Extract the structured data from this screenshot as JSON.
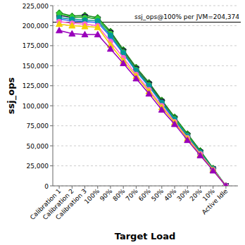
{
  "chart_data": {
    "type": "line",
    "x_label": "Target Load",
    "y_label": "ssj_ops",
    "categories": [
      "Calibration 1",
      "Calibration 2",
      "Calibration 3",
      "100%",
      "90%",
      "80%",
      "70%",
      "60%",
      "50%",
      "40%",
      "30%",
      "20%",
      "10%",
      "Active Idle"
    ],
    "series": [
      {
        "color": "#1a8a1a",
        "marker": "diamond",
        "values": [
          216000,
          212000,
          213000,
          210000,
          193000,
          170000,
          148000,
          129000,
          107000,
          86000,
          65000,
          44000,
          22000,
          0
        ]
      },
      {
        "color": "#1c1c4a",
        "marker": "square",
        "values": [
          213000,
          210000,
          211000,
          208000,
          191000,
          168000,
          146000,
          127000,
          105000,
          84000,
          63000,
          42000,
          21000,
          0
        ]
      },
      {
        "color": "#33cc33",
        "marker": "circle",
        "values": [
          215000,
          211000,
          210000,
          209000,
          190000,
          167000,
          145000,
          126000,
          104000,
          84000,
          63000,
          42000,
          21000,
          0
        ]
      },
      {
        "color": "#3366ff",
        "marker": "circle",
        "values": [
          208000,
          206000,
          205000,
          204000,
          186000,
          165000,
          143000,
          124000,
          103000,
          82000,
          62000,
          41000,
          21000,
          0
        ]
      },
      {
        "color": "#009999",
        "marker": "circle",
        "values": [
          210000,
          208000,
          207000,
          206000,
          188000,
          166000,
          144000,
          125000,
          104000,
          83000,
          62000,
          42000,
          21000,
          0
        ]
      },
      {
        "color": "#ff66cc",
        "marker": "circle",
        "values": [
          205000,
          203000,
          202000,
          200000,
          180000,
          160000,
          139000,
          120000,
          100000,
          80000,
          60000,
          40000,
          20000,
          0
        ]
      },
      {
        "color": "#f2d000",
        "marker": "triangle",
        "values": [
          202000,
          200000,
          199000,
          198000,
          176000,
          156000,
          137000,
          118000,
          98000,
          79000,
          59000,
          39000,
          20000,
          0
        ]
      },
      {
        "color": "#9900bb",
        "marker": "triangle",
        "values": [
          194000,
          190000,
          189000,
          189000,
          171000,
          153000,
          134000,
          115000,
          95000,
          77000,
          57000,
          38000,
          19000,
          0
        ]
      }
    ],
    "ylim": [
      0,
      225000
    ],
    "yticks": [
      0,
      {
        "value": 25000,
        "label": "25,000"
      },
      {
        "value": 50000,
        "label": "50,000"
      },
      {
        "value": 75000,
        "label": "75,000"
      },
      {
        "value": 100000,
        "label": "100,000"
      },
      {
        "value": 125000,
        "label": "125,000"
      },
      {
        "value": 150000,
        "label": "150,000"
      },
      {
        "value": 175000,
        "label": "175,000"
      },
      {
        "value": 200000,
        "label": "200,000"
      },
      {
        "value": 225000,
        "label": "225,000"
      }
    ],
    "grid": true,
    "annotations": [
      {
        "text": "ssj_ops@100% per JVM=204,374",
        "y": 204374
      }
    ]
  }
}
